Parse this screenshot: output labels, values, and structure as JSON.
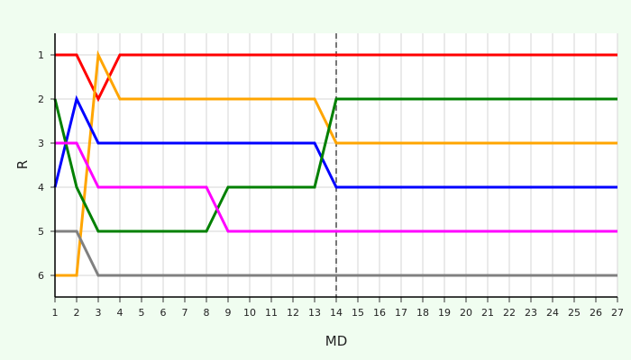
{
  "chart_data": {
    "type": "line",
    "subtype": "bump",
    "xlabel": "MD",
    "ylabel": "R",
    "x": [
      1,
      2,
      3,
      4,
      5,
      6,
      7,
      8,
      9,
      10,
      11,
      12,
      13,
      14,
      15,
      16,
      17,
      18,
      19,
      20,
      21,
      22,
      23,
      24,
      25,
      26,
      27
    ],
    "xlim": [
      1,
      27
    ],
    "ylim": [
      6.5,
      0.5
    ],
    "y_inverted": true,
    "y_ticks": [
      1,
      2,
      3,
      4,
      5,
      6
    ],
    "grid": true,
    "reference_line": {
      "x": 14,
      "style": "dashed",
      "color": "#777777"
    },
    "series": [
      {
        "color": "#ff0000",
        "values": [
          1,
          1,
          2,
          1,
          1,
          1,
          1,
          1,
          1,
          1,
          1,
          1,
          1,
          1,
          1,
          1,
          1,
          1,
          1,
          1,
          1,
          1,
          1,
          1,
          1,
          1,
          1
        ]
      },
      {
        "color": "#ffa500",
        "values": [
          6,
          6,
          1,
          2,
          2,
          2,
          2,
          2,
          2,
          2,
          2,
          2,
          2,
          3,
          3,
          3,
          3,
          3,
          3,
          3,
          3,
          3,
          3,
          3,
          3,
          3,
          3
        ]
      },
      {
        "color": "#0000ff",
        "values": [
          4,
          2,
          3,
          3,
          3,
          3,
          3,
          3,
          3,
          3,
          3,
          3,
          3,
          4,
          4,
          4,
          4,
          4,
          4,
          4,
          4,
          4,
          4,
          4,
          4,
          4,
          4
        ]
      },
      {
        "color": "#008000",
        "values": [
          2,
          4,
          5,
          5,
          5,
          5,
          5,
          5,
          4,
          4,
          4,
          4,
          4,
          2,
          2,
          2,
          2,
          2,
          2,
          2,
          2,
          2,
          2,
          2,
          2,
          2,
          2
        ]
      },
      {
        "color": "#ff00ff",
        "values": [
          3,
          3,
          4,
          4,
          4,
          4,
          4,
          4,
          5,
          5,
          5,
          5,
          5,
          5,
          5,
          5,
          5,
          5,
          5,
          5,
          5,
          5,
          5,
          5,
          5,
          5,
          5
        ]
      },
      {
        "color": "#808080",
        "values": [
          5,
          5,
          6,
          6,
          6,
          6,
          6,
          6,
          6,
          6,
          6,
          6,
          6,
          6,
          6,
          6,
          6,
          6,
          6,
          6,
          6,
          6,
          6,
          6,
          6,
          6,
          6
        ]
      }
    ]
  }
}
